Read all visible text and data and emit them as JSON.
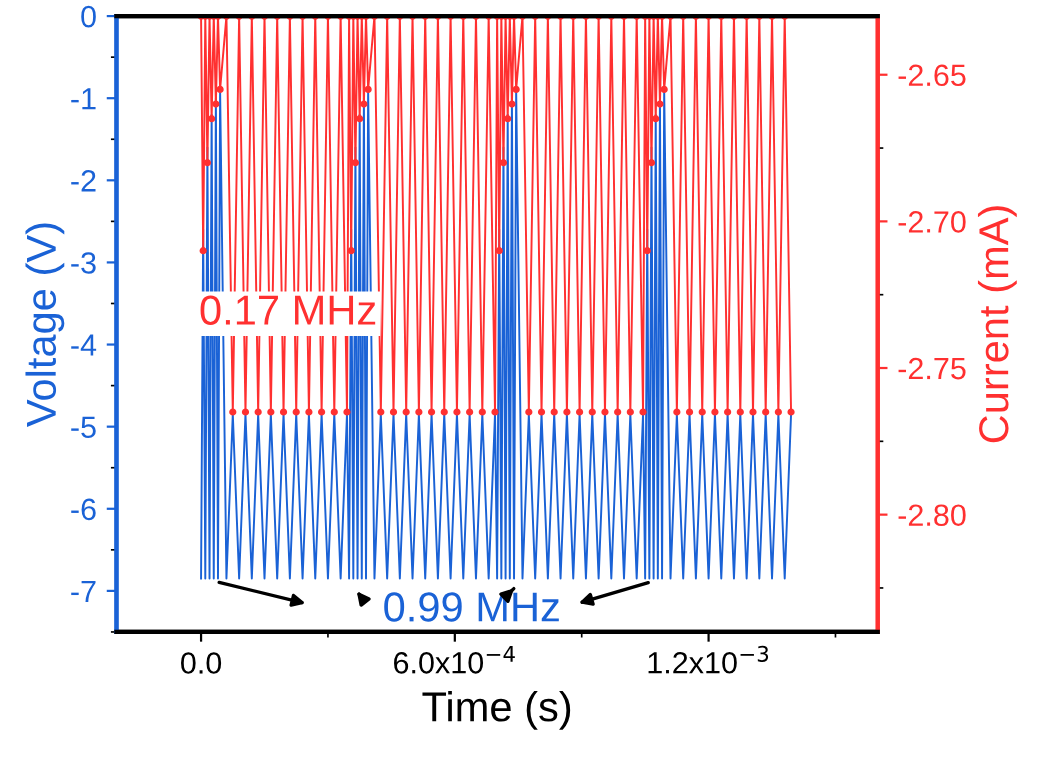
{
  "chart_data": {
    "type": "line",
    "xlabel": "Time (s)",
    "ylabel": "Voltage (V)",
    "y2label": "Current (mA)",
    "x": [
      0,
      5e-06,
      1e-05,
      1.5e-05,
      2e-05,
      2.5e-05,
      3e-05,
      3.5e-05,
      4e-05,
      4.5e-05,
      6e-05,
      7.5e-05,
      9e-05,
      0.000105,
      0.00012,
      0.000135,
      0.00015,
      0.000165,
      0.00018,
      0.000195,
      0.00021,
      0.000225,
      0.00024,
      0.000255,
      0.00027,
      0.000285,
      0.0003,
      0.000315,
      0.00033,
      0.000345,
      0.00035,
      0.000355,
      0.00036,
      0.000365,
      0.00037,
      0.000375,
      0.00038,
      0.000385,
      0.00039,
      0.000395,
      0.00041,
      0.000425,
      0.00044,
      0.000455,
      0.00047,
      0.000485,
      0.0005,
      0.000515,
      0.00053,
      0.000545,
      0.00056,
      0.000575,
      0.00059,
      0.000605,
      0.00062,
      0.000635,
      0.00065,
      0.000665,
      0.00068,
      0.000695,
      0.0007,
      0.000705,
      0.00071,
      0.000715,
      0.00072,
      0.000725,
      0.00073,
      0.000735,
      0.00074,
      0.000745,
      0.00076,
      0.000775,
      0.00079,
      0.000805,
      0.00082,
      0.000835,
      0.00085,
      0.000865,
      0.00088,
      0.000895,
      0.00091,
      0.000925,
      0.00094,
      0.000955,
      0.00097,
      0.000985,
      0.001,
      0.001015,
      0.00103,
      0.001045,
      0.00105,
      0.001055,
      0.00106,
      0.001065,
      0.00107,
      0.001075,
      0.00108,
      0.001085,
      0.00109,
      0.001095,
      0.00111,
      0.001125,
      0.00114,
      0.001155,
      0.00117,
      0.001185,
      0.0012,
      0.001215,
      0.00123,
      0.001245,
      0.00126,
      0.001275,
      0.00129,
      0.001305,
      0.00132,
      0.001335,
      0.00135,
      0.001365,
      0.00138,
      0.001395
    ],
    "series": [
      {
        "color": "#1a62d6",
        "values": [
          -6.85,
          -2.6,
          -6.85,
          -1.6,
          -6.85,
          -1.2,
          -6.85,
          -1.0,
          -6.85,
          -0.9,
          -6.85,
          -4.85,
          -6.85,
          -4.85,
          -6.85,
          -4.85,
          -6.85,
          -4.85,
          -6.85,
          -4.85,
          -6.85,
          -4.85,
          -6.85,
          -4.85,
          -6.85,
          -4.85,
          -6.85,
          -4.85,
          -6.85,
          -4.85,
          -6.85,
          -2.6,
          -6.85,
          -1.6,
          -6.85,
          -1.2,
          -6.85,
          -1.0,
          -6.85,
          -0.9,
          -6.85,
          -4.85,
          -6.85,
          -4.85,
          -6.85,
          -4.85,
          -6.85,
          -4.85,
          -6.85,
          -4.85,
          -6.85,
          -4.85,
          -6.85,
          -4.85,
          -6.85,
          -4.85,
          -6.85,
          -4.85,
          -6.85,
          -4.85,
          -6.85,
          -2.6,
          -6.85,
          -1.6,
          -6.85,
          -1.2,
          -6.85,
          -1.0,
          -6.85,
          -0.9,
          -6.85,
          -4.85,
          -6.85,
          -4.85,
          -6.85,
          -4.85,
          -6.85,
          -4.85,
          -6.85,
          -4.85,
          -6.85,
          -4.85,
          -6.85,
          -4.85,
          -6.85,
          -4.85,
          -6.85,
          -4.85,
          -6.85,
          -4.85,
          -6.85,
          -2.6,
          -6.85,
          -1.6,
          -6.85,
          -1.2,
          -6.85,
          -1.0,
          -6.85,
          -0.9,
          -6.85,
          -4.85,
          -6.85,
          -4.85,
          -6.85,
          -4.85,
          -6.85,
          -4.85,
          -6.85,
          -4.85,
          -6.85,
          -4.85,
          -6.85,
          -4.85,
          -6.85,
          -4.85,
          -6.85,
          -4.85,
          -6.85,
          -4.85
        ]
      },
      {
        "color": "#ff3030",
        "axis": "y2",
        "marker": "circle",
        "values": [
          -2.63,
          -2.71,
          -2.63,
          -2.68,
          -2.63,
          -2.665,
          -2.63,
          -2.66,
          -2.63,
          -2.655,
          -2.63,
          -2.765,
          -2.63,
          -2.765,
          -2.63,
          -2.765,
          -2.63,
          -2.765,
          -2.63,
          -2.765,
          -2.63,
          -2.765,
          -2.63,
          -2.765,
          -2.63,
          -2.765,
          -2.63,
          -2.765,
          -2.63,
          -2.765,
          -2.63,
          -2.71,
          -2.63,
          -2.68,
          -2.63,
          -2.665,
          -2.63,
          -2.66,
          -2.63,
          -2.655,
          -2.63,
          -2.765,
          -2.63,
          -2.765,
          -2.63,
          -2.765,
          -2.63,
          -2.765,
          -2.63,
          -2.765,
          -2.63,
          -2.765,
          -2.63,
          -2.765,
          -2.63,
          -2.765,
          -2.63,
          -2.765,
          -2.63,
          -2.765,
          -2.63,
          -2.71,
          -2.63,
          -2.68,
          -2.63,
          -2.665,
          -2.63,
          -2.66,
          -2.63,
          -2.655,
          -2.63,
          -2.765,
          -2.63,
          -2.765,
          -2.63,
          -2.765,
          -2.63,
          -2.765,
          -2.63,
          -2.765,
          -2.63,
          -2.765,
          -2.63,
          -2.765,
          -2.63,
          -2.765,
          -2.63,
          -2.765,
          -2.63,
          -2.765,
          -2.63,
          -2.71,
          -2.63,
          -2.68,
          -2.63,
          -2.665,
          -2.63,
          -2.66,
          -2.63,
          -2.655,
          -2.63,
          -2.765,
          -2.63,
          -2.765,
          -2.63,
          -2.765,
          -2.63,
          -2.765,
          -2.63,
          -2.765,
          -2.63,
          -2.765,
          -2.63,
          -2.765,
          -2.63,
          -2.765,
          -2.63,
          -2.765,
          -2.63,
          -2.765
        ]
      }
    ],
    "xlim": [
      -0.0002,
      0.0016
    ],
    "xticks": [
      {
        "value": 0,
        "label": "0.0"
      },
      {
        "value": 0.0006,
        "label": "6.0x10$^{−4}$"
      },
      {
        "value": 0.0012,
        "label": "1.2x10$^{−3}$"
      }
    ],
    "ylim": [
      -7.5,
      0
    ],
    "yticks": [
      0,
      -1,
      -2,
      -3,
      -4,
      -5,
      -6,
      -7
    ],
    "y2lim": [
      -2.84,
      -2.63
    ],
    "y2ticks": [
      -2.65,
      {
        "value": -2.7,
        "label": "-2.70"
      },
      -2.75,
      {
        "value": -2.8,
        "label": "-2.80"
      }
    ],
    "annotations": [
      "0.17 MHz",
      "0.99 MHz"
    ]
  }
}
